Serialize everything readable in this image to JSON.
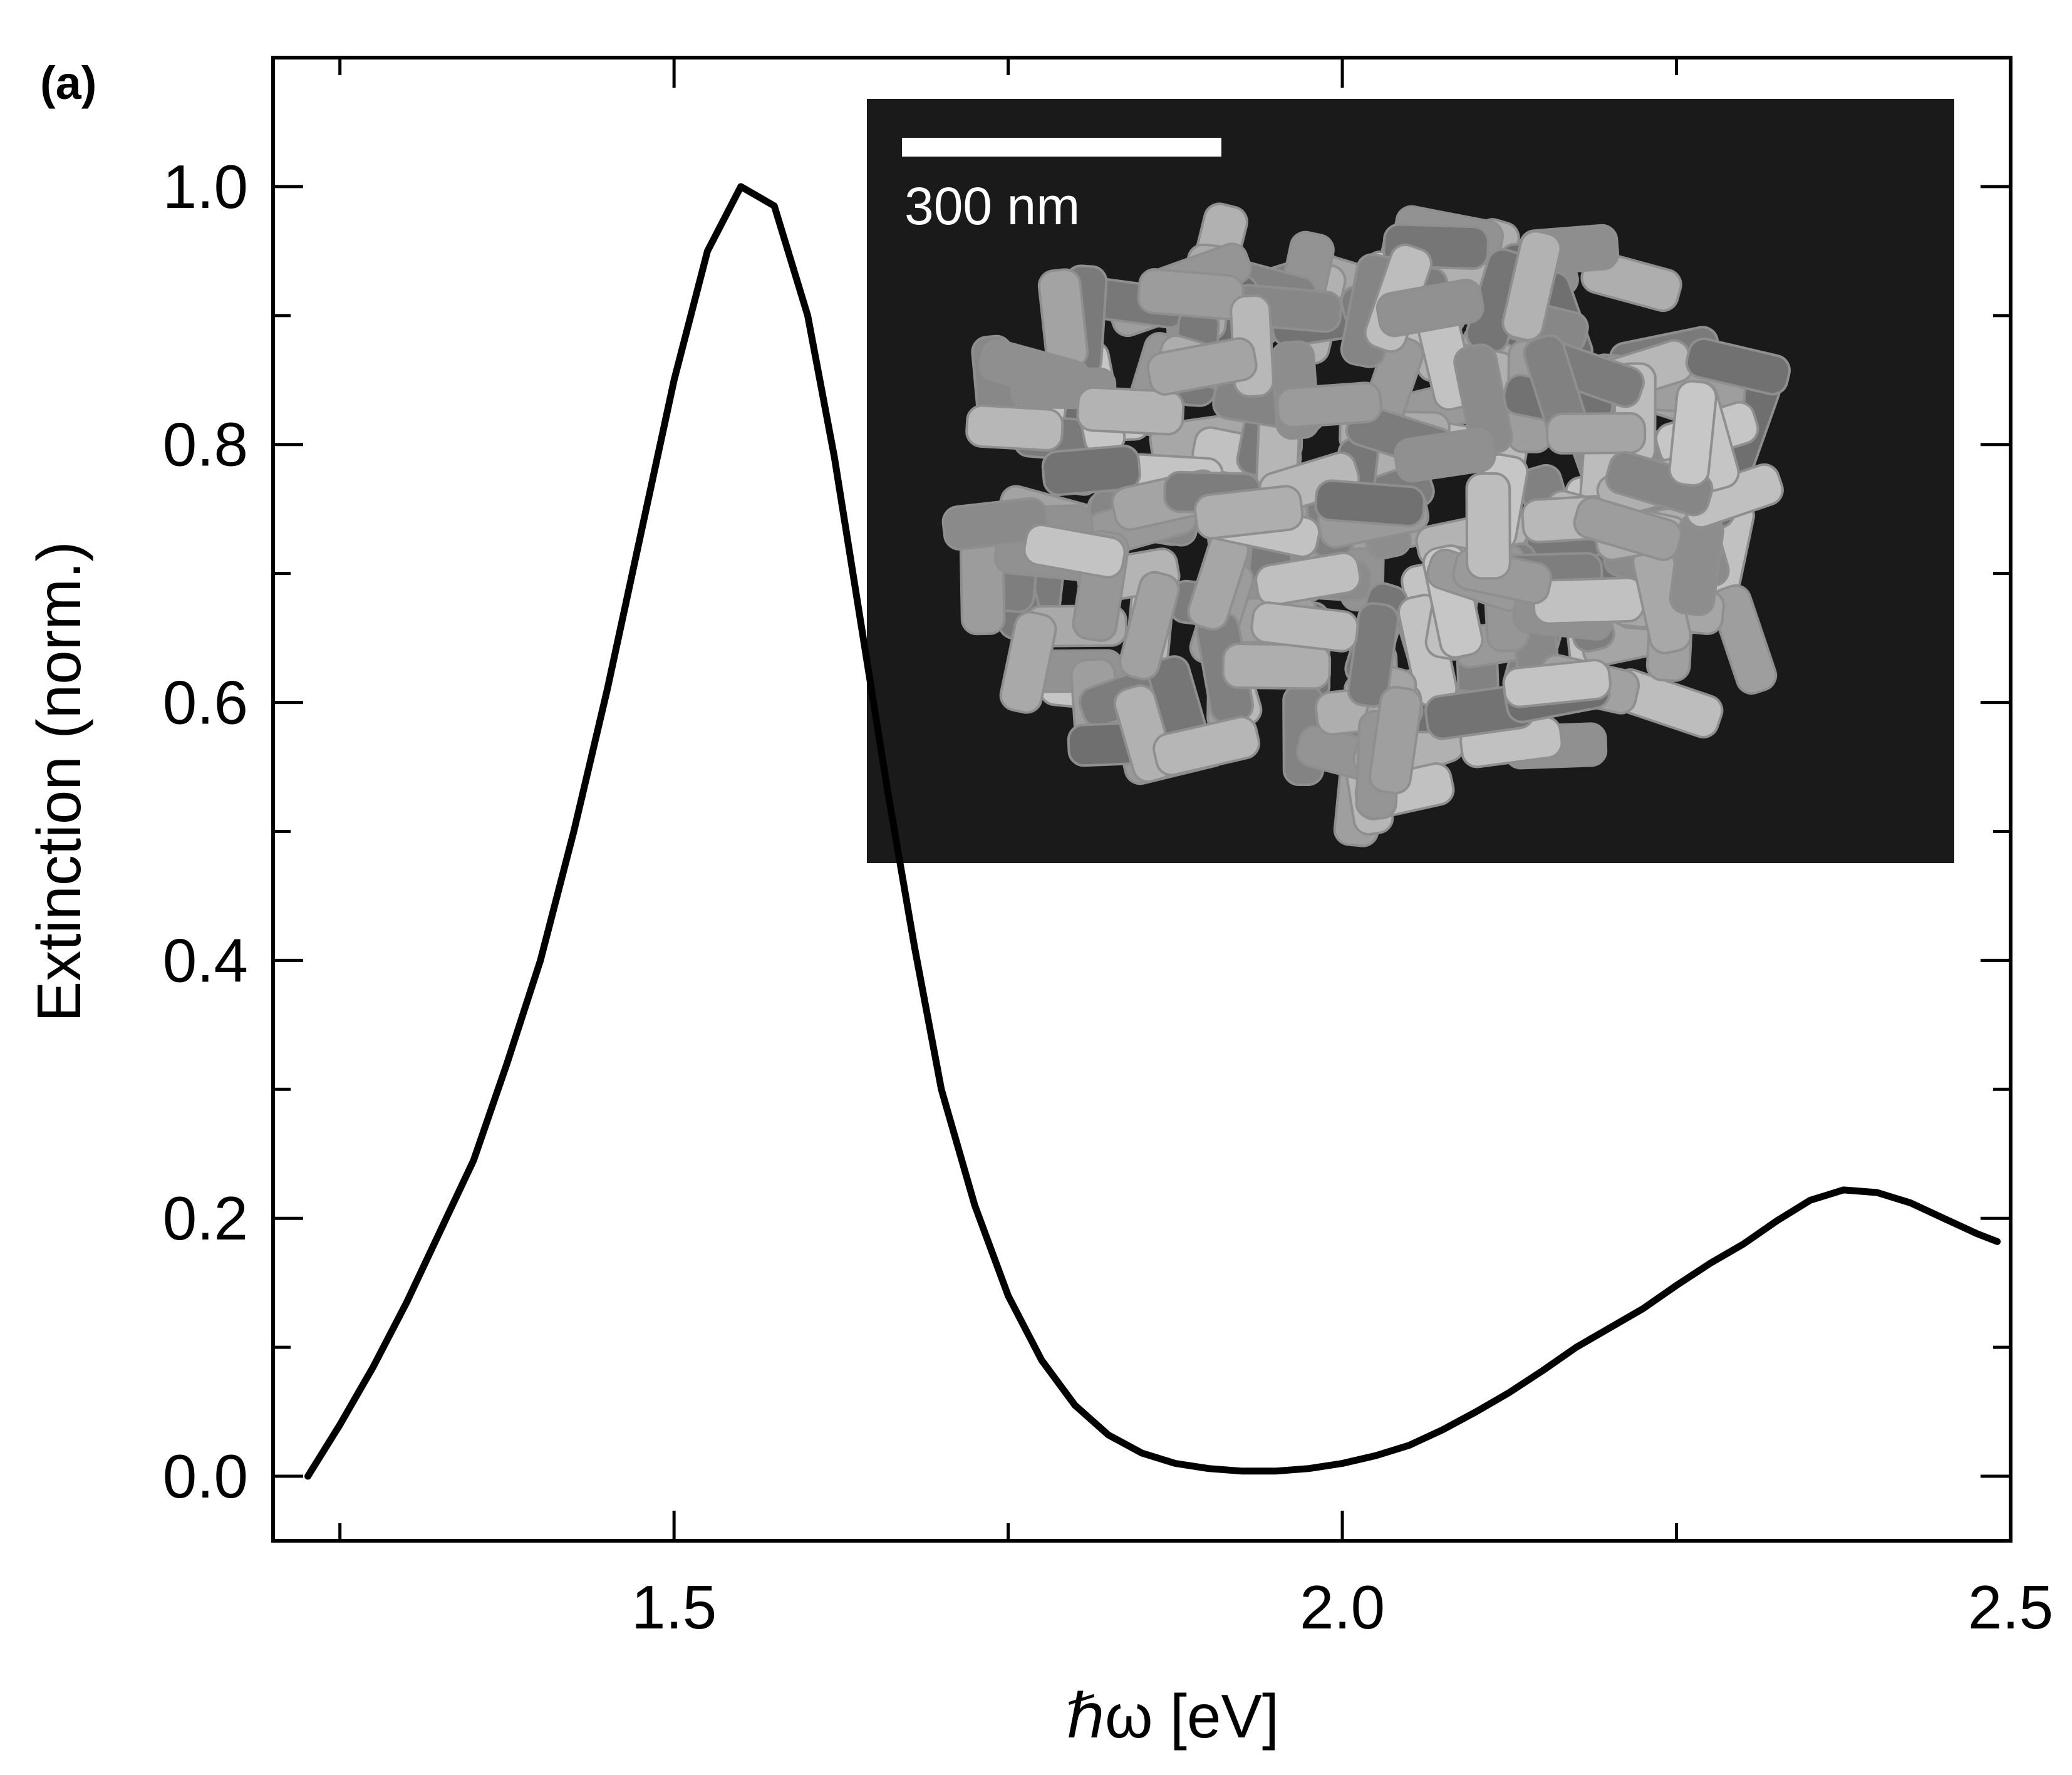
{
  "panel_label": "(a)",
  "inset": {
    "scale_bar_label": "300 nm",
    "background_color": "#1a1a1a",
    "rod_color": "#8f8f8f"
  },
  "chart_data": {
    "type": "line",
    "title": "",
    "xlabel": "ℏω [eV]",
    "ylabel": "Extinction (norm.)",
    "xlim": [
      1.2,
      2.5
    ],
    "ylim": [
      -0.05,
      1.1
    ],
    "x_ticks": [
      1.5,
      2.0,
      2.5
    ],
    "x_tick_labels": [
      "1.5",
      "2.0",
      "2.5"
    ],
    "y_ticks": [
      0.0,
      0.2,
      0.4,
      0.6,
      0.8,
      1.0
    ],
    "y_tick_labels": [
      "0.0",
      "0.2",
      "0.4",
      "0.6",
      "0.8",
      "1.0"
    ],
    "grid": false,
    "line_color": "#000000",
    "series": [
      {
        "x": [
          1.226,
          1.25,
          1.275,
          1.3,
          1.325,
          1.35,
          1.375,
          1.4,
          1.425,
          1.45,
          1.475,
          1.5,
          1.525,
          1.55,
          1.575,
          1.6,
          1.62,
          1.64,
          1.66,
          1.68,
          1.7,
          1.725,
          1.75,
          1.775,
          1.8,
          1.825,
          1.85,
          1.875,
          1.9,
          1.925,
          1.95,
          1.975,
          2.0,
          2.025,
          2.05,
          2.075,
          2.1,
          2.125,
          2.15,
          2.175,
          2.2,
          2.225,
          2.25,
          2.275,
          2.3,
          2.325,
          2.35,
          2.375,
          2.4,
          2.425,
          2.45,
          2.475,
          2.49
        ],
        "y": [
          0.0,
          0.04,
          0.085,
          0.135,
          0.19,
          0.245,
          0.32,
          0.4,
          0.5,
          0.61,
          0.73,
          0.85,
          0.95,
          1.0,
          0.985,
          0.9,
          0.79,
          0.66,
          0.53,
          0.41,
          0.3,
          0.21,
          0.14,
          0.09,
          0.055,
          0.032,
          0.018,
          0.01,
          0.006,
          0.004,
          0.004,
          0.006,
          0.01,
          0.016,
          0.024,
          0.036,
          0.05,
          0.065,
          0.082,
          0.1,
          0.115,
          0.13,
          0.148,
          0.165,
          0.18,
          0.198,
          0.214,
          0.222,
          0.22,
          0.212,
          0.2,
          0.188,
          0.182
        ]
      }
    ]
  }
}
